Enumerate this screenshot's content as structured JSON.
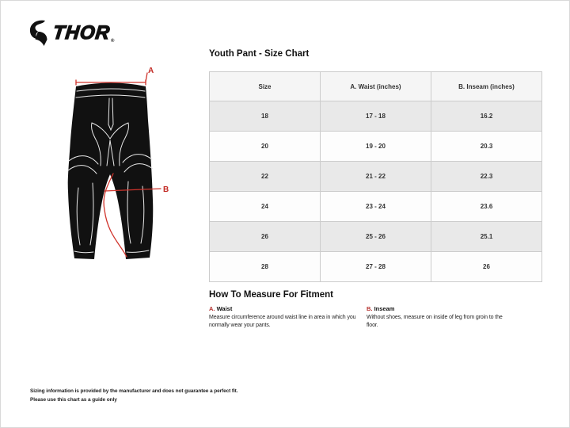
{
  "brand": {
    "name": "THOR",
    "reg": "®"
  },
  "title": "Youth Pant - Size Chart",
  "diagram": {
    "label_a": "A",
    "label_b": "B"
  },
  "table": {
    "headers": [
      "Size",
      "A. Waist (inches)",
      "B. Inseam (inches)"
    ],
    "rows": [
      [
        "18",
        "17 - 18",
        "16.2"
      ],
      [
        "20",
        "19 - 20",
        "20.3"
      ],
      [
        "22",
        "21 - 22",
        "22.3"
      ],
      [
        "24",
        "23 - 24",
        "23.6"
      ],
      [
        "26",
        "25 - 26",
        "25.1"
      ],
      [
        "28",
        "27 - 28",
        "26"
      ]
    ]
  },
  "measure": {
    "title": "How To Measure For Fitment",
    "items": [
      {
        "key": "A.",
        "label": "Waist",
        "text": "Measure circumference around waist line in area in which you normally wear your pants."
      },
      {
        "key": "B.",
        "label": "Inseam",
        "text": "Without shoes, measure on inside of leg from groin to the floor."
      }
    ]
  },
  "disclaimer": {
    "line1": "Sizing information is provided by the manufacturer and does not guarantee a perfect fit.",
    "line2": "Please use this chart as a guide only"
  },
  "colors": {
    "accent_red": "#d0342c",
    "label_red": "#b5312e",
    "row_alt": "#e9e9e9",
    "header_bg": "#f5f5f5",
    "table_border": "#cccccc",
    "pants_fill": "#111111",
    "seam": "#e8e8e8"
  }
}
